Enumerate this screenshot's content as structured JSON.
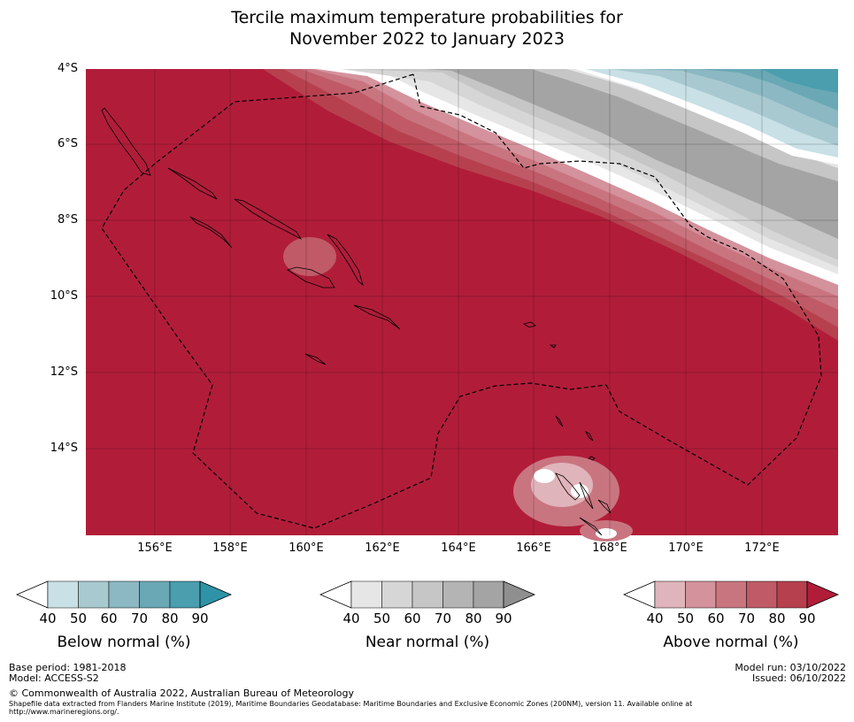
{
  "title_line1": "Tercile maximum temperature probabilities for",
  "title_line2": "November 2022 to January 2023",
  "lat_labels": [
    "4°S",
    "6°S",
    "8°S",
    "10°S",
    "12°S",
    "14°S"
  ],
  "lon_labels": [
    "156°E",
    "158°E",
    "160°E",
    "162°E",
    "164°E",
    "166°E",
    "168°E",
    "170°E",
    "172°E"
  ],
  "colorbars": [
    {
      "label": "Below normal (%)",
      "ticks": [
        "40",
        "50",
        "60",
        "70",
        "80",
        "90"
      ],
      "colors": [
        "#c8e0e6",
        "#a9c9d1",
        "#8bb8c2",
        "#6aa8b5",
        "#4a9eae",
        "#2e93a6"
      ]
    },
    {
      "label": "Near normal (%)",
      "ticks": [
        "40",
        "50",
        "60",
        "70",
        "80",
        "90"
      ],
      "colors": [
        "#e6e6e6",
        "#d6d6d6",
        "#c6c6c6",
        "#b4b4b4",
        "#a4a4a4",
        "#8f8f8f"
      ]
    },
    {
      "label": "Above normal (%)",
      "ticks": [
        "40",
        "50",
        "60",
        "70",
        "80",
        "90"
      ],
      "colors": [
        "#e0b4bb",
        "#d4929c",
        "#c97580",
        "#c05a67",
        "#b7404f",
        "#b11d39"
      ]
    }
  ],
  "footer": {
    "base_period": "Base period: 1981-2018",
    "model": "Model: ACCESS-S2",
    "copyright": "© Commonwealth of Australia 2022, Australian Bureau of Meteorology",
    "shapefile_line1": "Shapefile data extracted from Flanders Marine Institute (2019), Maritime Boundaries Geodatabase: Maritime Boundaries and Exclusive Economic Zones (200NM), version 11. Available online at",
    "shapefile_line2": "http://www.marineregions.org/.",
    "model_run": "Model run: 03/10/2022",
    "issued": "Issued: 06/10/2022"
  }
}
